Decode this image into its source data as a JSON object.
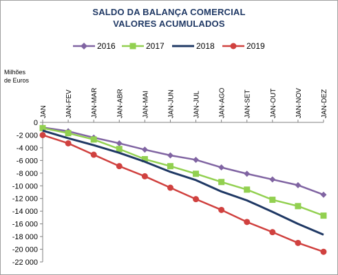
{
  "chart_data": {
    "type": "line",
    "title": "SALDO DA BALANÇA COMERCIAL",
    "subtitle": "VALORES ACUMULADOS",
    "ylabel_line1": "Milhões",
    "ylabel_line2": "de Euros",
    "categories": [
      "JAN",
      "JAN-FEV",
      "JAN-MAR",
      "JAN-ABR",
      "JAN-MAI",
      "JAN-JUN",
      "JAN-JUL",
      "JAN-AGO",
      "JAN-SET",
      "JAN-OUT",
      "JAN-NOV",
      "JAN-DEZ"
    ],
    "ylim": [
      -22000,
      0
    ],
    "ytick_step": 2000,
    "ytick_labels": [
      "0",
      "-2 000",
      "-4 000",
      "-6 000",
      "-8 000",
      "-10 000",
      "-12 000",
      "-14 000",
      "-16 000",
      "-18 000",
      "-20 000",
      "-22 000"
    ],
    "xaxis_position": "top",
    "grid": false,
    "legend_position": "top",
    "series": [
      {
        "name": "2016",
        "color": "#8064a2",
        "marker": "diamond",
        "values": [
          -800,
          -1400,
          -2400,
          -3300,
          -4300,
          -5200,
          -5900,
          -7100,
          -8100,
          -9000,
          -9900,
          -11400
        ]
      },
      {
        "name": "2017",
        "color": "#92d050",
        "marker": "square",
        "values": [
          -900,
          -1700,
          -2700,
          -4200,
          -5800,
          -6900,
          -8100,
          -9400,
          -10600,
          -12200,
          -13200,
          -14700
        ]
      },
      {
        "name": "2018",
        "color": "#1f3864",
        "marker": "none",
        "values": [
          -1300,
          -2500,
          -3600,
          -4800,
          -6200,
          -7800,
          -9100,
          -10900,
          -12300,
          -14100,
          -16000,
          -17700
        ]
      },
      {
        "name": "2019",
        "color": "#d0413f",
        "marker": "circle",
        "values": [
          -2000,
          -3300,
          -5100,
          -6900,
          -8500,
          -10300,
          -12100,
          -13800,
          -15700,
          -17300,
          -19000,
          -20400
        ]
      }
    ]
  }
}
